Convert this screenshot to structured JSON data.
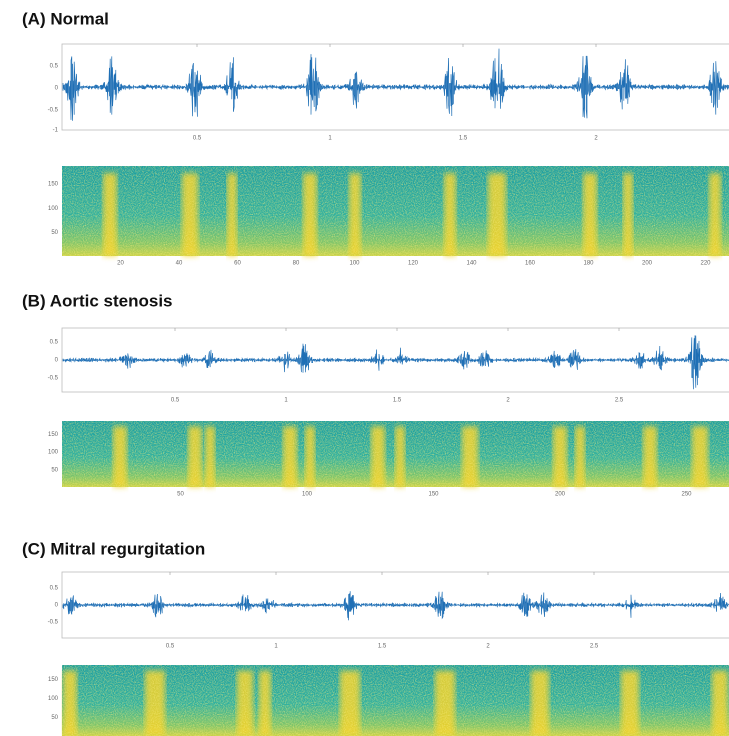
{
  "panels": [
    {
      "title": "(A) Normal",
      "waveform": {
        "yticks": [
          "0.5",
          "0",
          "-0.5",
          "-1"
        ],
        "xticks": [
          "0.5",
          "1",
          "1.5",
          "2"
        ]
      },
      "spectrogram": {
        "yticks": [
          "150",
          "100",
          "50"
        ],
        "xticks": [
          "20",
          "40",
          "60",
          "80",
          "100",
          "120",
          "140",
          "160",
          "180",
          "200",
          "220"
        ]
      }
    },
    {
      "title": "(B) Aortic stenosis",
      "waveform": {
        "yticks": [
          "0.5",
          "0",
          "-0.5"
        ],
        "xticks": [
          "0.5",
          "1",
          "1.5",
          "2",
          "2.5"
        ]
      },
      "spectrogram": {
        "yticks": [
          "150",
          "100",
          "50"
        ],
        "xticks": [
          "50",
          "100",
          "150",
          "200",
          "250"
        ]
      }
    },
    {
      "title": "(C) Mitral regurgitation",
      "waveform": {
        "yticks": [
          "0.5",
          "0",
          "-0.5"
        ],
        "xticks": [
          "0.5",
          "1",
          "1.5",
          "2",
          "2.5"
        ]
      },
      "spectrogram": {
        "yticks": [
          "150",
          "100",
          "50"
        ],
        "xticks": []
      }
    }
  ]
}
